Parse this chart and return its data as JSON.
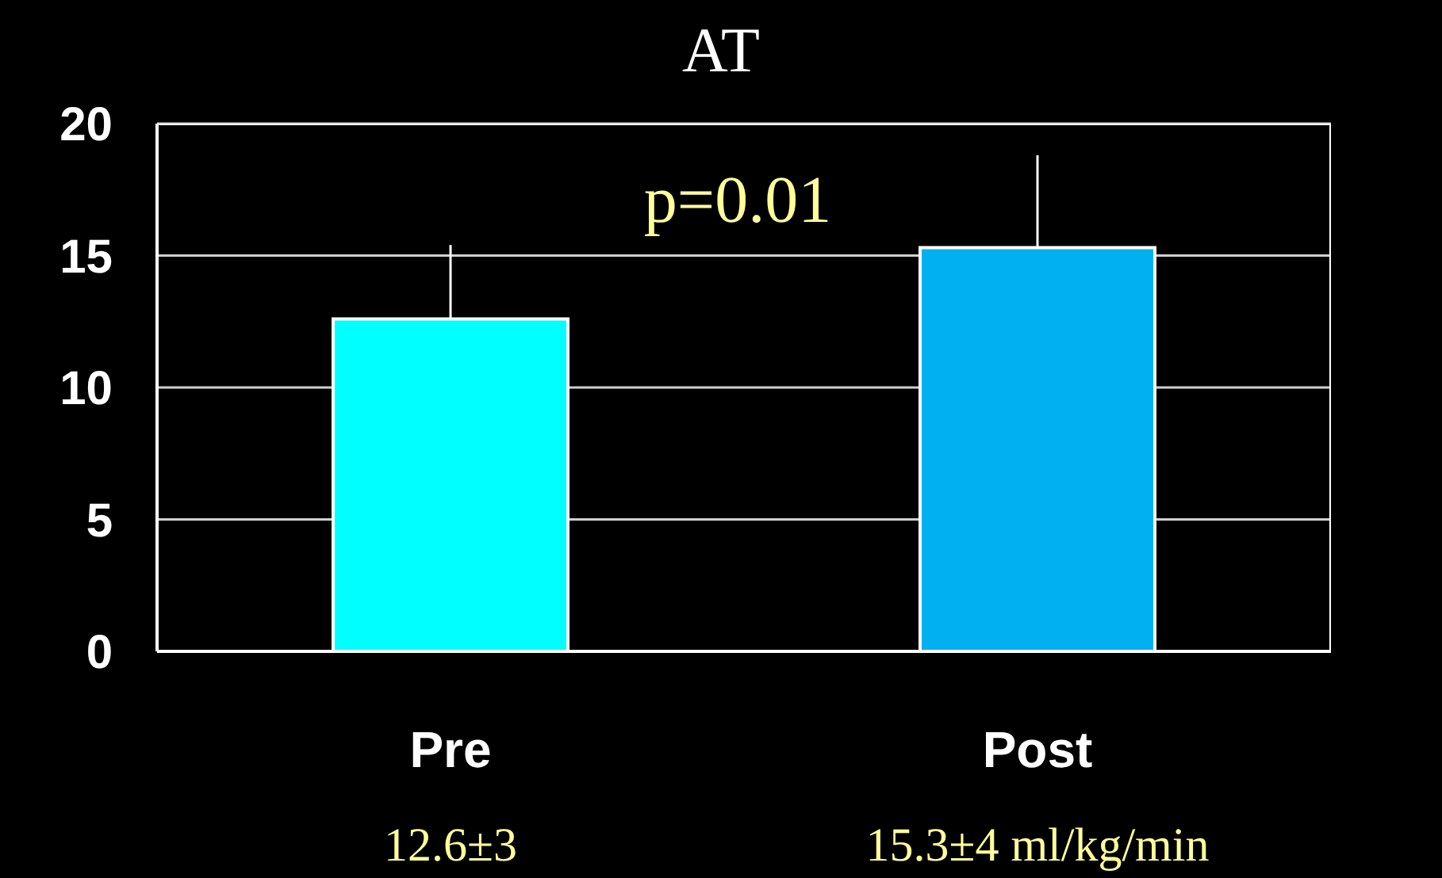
{
  "chart_data": {
    "type": "bar",
    "title": "AT",
    "categories": [
      "Pre",
      "Post"
    ],
    "values": [
      12.6,
      15.3
    ],
    "colors": [
      "#00ffff",
      "#00b0f0"
    ],
    "errors": [
      [
        12.6,
        15.4
      ],
      [
        15.3,
        18.8
      ]
    ],
    "value_labels": [
      "12.6±3",
      "15.3±4 ml/kg/min"
    ],
    "annotations": [
      "p=0.01"
    ],
    "ylim": [
      0,
      20
    ],
    "yticks": [
      0,
      5,
      10,
      15,
      20
    ],
    "grid": "y"
  }
}
